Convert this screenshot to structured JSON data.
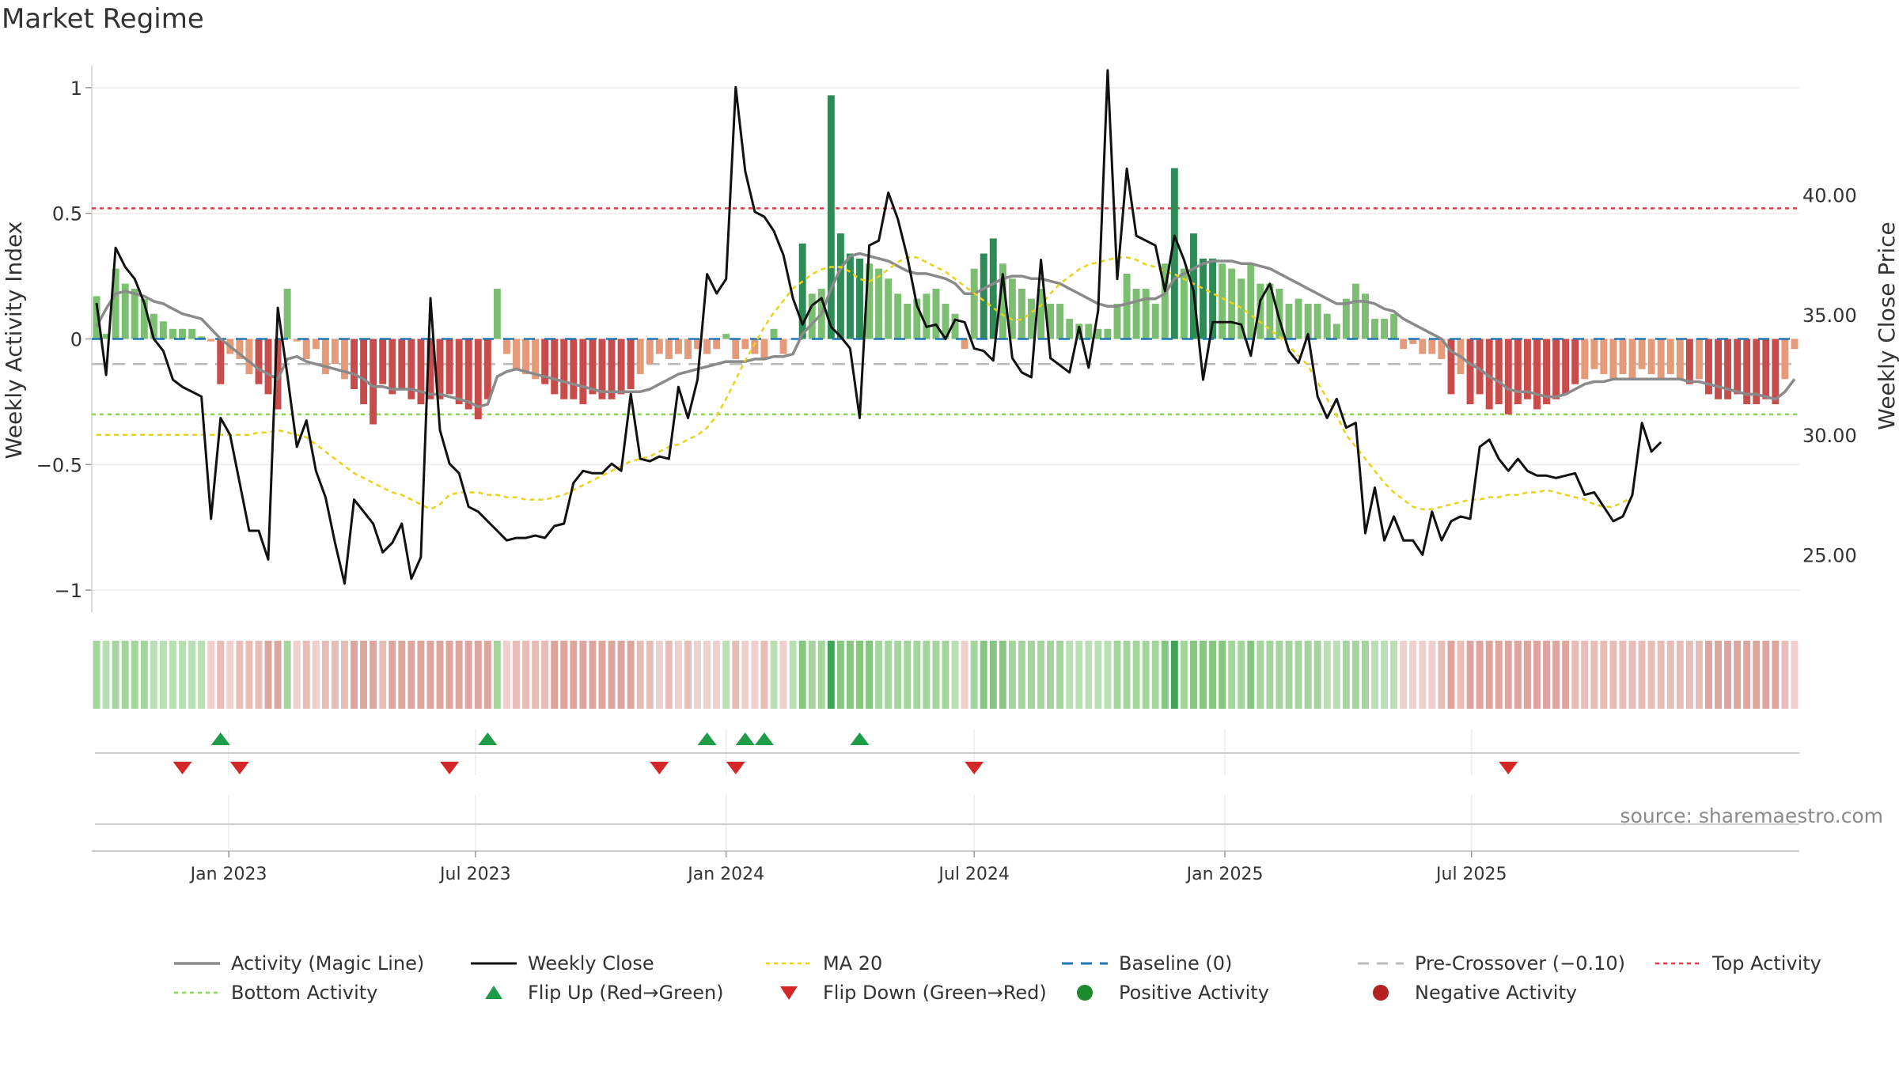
{
  "page": {
    "title": "Market Regime",
    "source": "source: sharemaestro.com"
  },
  "chart_data": {
    "type": "bar",
    "x_ticks": [
      "Jan 2023",
      "Jul 2023",
      "Jan 2024",
      "Jul 2024",
      "Jan 2025",
      "Jul 2025"
    ],
    "y_left": {
      "label": "Weekly Activity Index",
      "range": [
        -1.05,
        1.05
      ],
      "ticks": [
        1,
        0.5,
        0,
        -0.5,
        -1
      ],
      "tick_labels": [
        "1",
        "0.5",
        "0",
        "−0.5",
        "−1"
      ]
    },
    "y_right": {
      "label": "Weekly Close Price",
      "range": [
        23.0,
        45.0
      ],
      "ticks": [
        40,
        35,
        30,
        25
      ],
      "tick_labels": [
        "40.00",
        "35.00",
        "30.00",
        "25.00"
      ]
    },
    "reference_lines": {
      "top_activity": 0.52,
      "bottom_activity": -0.3,
      "baseline": 0,
      "pre_crossover": -0.1
    },
    "start_week": "2022-09-26",
    "activity": [
      0.17,
      0.02,
      0.28,
      0.22,
      0.2,
      0.16,
      0.1,
      0.07,
      0.04,
      0.04,
      0.04,
      0.01,
      -0.01,
      -0.18,
      -0.06,
      -0.08,
      -0.14,
      -0.18,
      -0.22,
      -0.28,
      0.2,
      -0.01,
      -0.08,
      -0.04,
      -0.14,
      -0.1,
      -0.16,
      -0.2,
      -0.26,
      -0.34,
      -0.18,
      -0.22,
      -0.2,
      -0.24,
      -0.26,
      -0.24,
      -0.24,
      -0.22,
      -0.26,
      -0.28,
      -0.32,
      -0.24,
      0.2,
      -0.06,
      -0.12,
      -0.14,
      -0.16,
      -0.18,
      -0.22,
      -0.24,
      -0.24,
      -0.26,
      -0.22,
      -0.24,
      -0.24,
      -0.22,
      -0.2,
      -0.14,
      -0.1,
      -0.06,
      -0.08,
      -0.06,
      -0.08,
      -0.04,
      -0.06,
      -0.04,
      0.02,
      -0.08,
      -0.04,
      -0.06,
      -0.08,
      0.04,
      -0.06,
      0.0,
      0.38,
      0.18,
      0.2,
      0.97,
      0.42,
      0.34,
      0.32,
      0.3,
      0.28,
      0.24,
      0.18,
      0.14,
      0.16,
      0.18,
      0.2,
      0.14,
      0.1,
      -0.04,
      0.28,
      0.34,
      0.4,
      0.3,
      0.24,
      0.2,
      0.16,
      0.2,
      0.14,
      0.14,
      0.08,
      0.06,
      0.06,
      0.04,
      0.04,
      0.14,
      0.26,
      0.2,
      0.2,
      0.14,
      0.3,
      0.68,
      0.28,
      0.42,
      0.32,
      0.32,
      0.3,
      0.28,
      0.24,
      0.3,
      0.22,
      0.22,
      0.2,
      0.14,
      0.16,
      0.14,
      0.14,
      0.1,
      0.06,
      0.16,
      0.22,
      0.18,
      0.08,
      0.08,
      0.1,
      -0.04,
      -0.02,
      -0.06,
      -0.06,
      -0.08,
      -0.22,
      -0.14,
      -0.26,
      -0.22,
      -0.28,
      -0.26,
      -0.3,
      -0.26,
      -0.24,
      -0.28,
      -0.26,
      -0.24,
      -0.22,
      -0.18,
      -0.16,
      -0.12,
      -0.14,
      -0.16,
      -0.14,
      -0.16,
      -0.12,
      -0.14,
      -0.16,
      -0.14,
      -0.16,
      -0.18,
      -0.16,
      -0.22,
      -0.24,
      -0.24,
      -0.22,
      -0.26,
      -0.26,
      -0.24,
      -0.26,
      -0.16,
      -0.04
    ],
    "magic_line": [
      0.05,
      0.12,
      0.18,
      0.19,
      0.18,
      0.17,
      0.15,
      0.14,
      0.12,
      0.1,
      0.09,
      0.08,
      0.04,
      0.0,
      -0.03,
      -0.06,
      -0.09,
      -0.12,
      -0.14,
      -0.16,
      -0.08,
      -0.07,
      -0.09,
      -0.1,
      -0.11,
      -0.12,
      -0.13,
      -0.14,
      -0.16,
      -0.19,
      -0.19,
      -0.2,
      -0.2,
      -0.2,
      -0.21,
      -0.22,
      -0.22,
      -0.23,
      -0.24,
      -0.25,
      -0.27,
      -0.26,
      -0.15,
      -0.13,
      -0.12,
      -0.13,
      -0.14,
      -0.15,
      -0.16,
      -0.17,
      -0.18,
      -0.19,
      -0.2,
      -0.21,
      -0.21,
      -0.21,
      -0.21,
      -0.21,
      -0.2,
      -0.18,
      -0.16,
      -0.14,
      -0.13,
      -0.12,
      -0.11,
      -0.1,
      -0.09,
      -0.09,
      -0.09,
      -0.08,
      -0.08,
      -0.07,
      -0.07,
      -0.06,
      0.02,
      0.06,
      0.1,
      0.2,
      0.28,
      0.33,
      0.34,
      0.33,
      0.32,
      0.31,
      0.29,
      0.27,
      0.26,
      0.26,
      0.25,
      0.24,
      0.22,
      0.18,
      0.18,
      0.2,
      0.22,
      0.24,
      0.25,
      0.25,
      0.24,
      0.24,
      0.23,
      0.22,
      0.2,
      0.18,
      0.16,
      0.14,
      0.13,
      0.13,
      0.14,
      0.15,
      0.16,
      0.16,
      0.18,
      0.24,
      0.26,
      0.28,
      0.3,
      0.31,
      0.31,
      0.31,
      0.3,
      0.3,
      0.29,
      0.28,
      0.26,
      0.24,
      0.22,
      0.2,
      0.18,
      0.16,
      0.14,
      0.14,
      0.15,
      0.15,
      0.14,
      0.12,
      0.11,
      0.08,
      0.06,
      0.04,
      0.02,
      0.0,
      -0.05,
      -0.07,
      -0.1,
      -0.12,
      -0.15,
      -0.17,
      -0.2,
      -0.21,
      -0.21,
      -0.22,
      -0.23,
      -0.23,
      -0.22,
      -0.2,
      -0.18,
      -0.17,
      -0.17,
      -0.16,
      -0.16,
      -0.16,
      -0.16,
      -0.16,
      -0.16,
      -0.16,
      -0.16,
      -0.17,
      -0.17,
      -0.18,
      -0.19,
      -0.2,
      -0.21,
      -0.22,
      -0.22,
      -0.23,
      -0.24,
      -0.21,
      -0.16
    ],
    "weekly_close": [
      35.5,
      32.5,
      37.8,
      37.0,
      36.5,
      35.5,
      34.0,
      33.5,
      32.3,
      32.0,
      31.8,
      31.6,
      26.5,
      30.7,
      30.0,
      28.0,
      26.0,
      26.0,
      24.8,
      35.3,
      32.5,
      29.5,
      30.6,
      28.5,
      27.4,
      25.5,
      23.8,
      27.3,
      26.8,
      26.3,
      25.1,
      25.5,
      26.3,
      24.0,
      24.9,
      35.7,
      30.2,
      28.8,
      28.4,
      27.0,
      26.8,
      26.4,
      26.0,
      25.6,
      25.7,
      25.7,
      25.8,
      25.7,
      26.2,
      26.3,
      28.0,
      28.5,
      28.4,
      28.4,
      28.8,
      28.5,
      31.7,
      29.0,
      28.9,
      29.1,
      29.0,
      32.0,
      30.7,
      32.3,
      36.7,
      35.9,
      36.5,
      44.5,
      41.0,
      39.3,
      39.1,
      38.5,
      37.5,
      35.7,
      34.6,
      35.4,
      35.7,
      34.5,
      34.1,
      33.6,
      30.7,
      37.9,
      38.1,
      40.1,
      39.0,
      37.4,
      35.4,
      34.5,
      34.6,
      34.0,
      34.8,
      34.7,
      33.6,
      33.5,
      33.1,
      36.7,
      33.2,
      32.6,
      32.4,
      37.3,
      33.2,
      32.9,
      32.6,
      34.5,
      32.8,
      35.2,
      45.2,
      36.5,
      41.1,
      38.3,
      38.1,
      37.9,
      36.0,
      38.3,
      37.3,
      36.0,
      32.3,
      34.7,
      34.7,
      34.7,
      34.6,
      33.3,
      35.6,
      36.3,
      34.8,
      33.5,
      33.0,
      34.2,
      31.6,
      30.7,
      31.5,
      30.3,
      30.5,
      25.9,
      27.8,
      25.6,
      26.6,
      25.6,
      25.6,
      25.0,
      26.8,
      25.6,
      26.4,
      26.6,
      26.5,
      29.5,
      29.8,
      29.0,
      28.5,
      29.0,
      28.5,
      28.3,
      28.3,
      28.2,
      28.3,
      28.4,
      27.5,
      27.6,
      27.0,
      26.4,
      26.6,
      27.5,
      30.5,
      29.3,
      29.7
    ],
    "ma20": [
      30.0,
      30.0,
      30.0,
      30.0,
      30.0,
      30.0,
      30.0,
      30.0,
      30.0,
      30.0,
      30.0,
      30.0,
      30.0,
      30.0,
      30.0,
      30.0,
      30.0,
      30.1,
      30.1,
      30.2,
      30.1,
      30.0,
      29.9,
      29.6,
      29.3,
      29.0,
      28.7,
      28.4,
      28.2,
      28.0,
      27.8,
      27.6,
      27.5,
      27.3,
      27.1,
      26.9,
      27.1,
      27.5,
      27.6,
      27.6,
      27.6,
      27.5,
      27.5,
      27.4,
      27.4,
      27.3,
      27.3,
      27.3,
      27.4,
      27.5,
      27.7,
      27.9,
      28.1,
      28.3,
      28.5,
      28.7,
      28.9,
      29.0,
      29.1,
      29.3,
      29.5,
      29.6,
      29.8,
      30.0,
      30.3,
      30.8,
      31.5,
      32.3,
      33.1,
      33.8,
      34.5,
      35.1,
      35.6,
      36.1,
      36.4,
      36.7,
      36.9,
      37.0,
      37.0,
      36.8,
      36.5,
      36.4,
      36.6,
      36.9,
      37.2,
      37.4,
      37.4,
      37.2,
      37.0,
      36.8,
      36.5,
      36.2,
      35.9,
      35.6,
      35.3,
      35.0,
      34.8,
      34.8,
      35.1,
      35.4,
      35.9,
      36.3,
      36.6,
      36.9,
      37.1,
      37.2,
      37.3,
      37.4,
      37.4,
      37.3,
      37.1,
      37.0,
      36.8,
      36.7,
      36.5,
      36.3,
      36.1,
      35.9,
      35.7,
      35.5,
      35.3,
      35.0,
      34.7,
      34.4,
      34.1,
      33.7,
      33.3,
      32.9,
      32.2,
      31.5,
      30.8,
      30.0,
      29.5,
      29.0,
      28.5,
      28.0,
      27.6,
      27.3,
      27.0,
      26.9,
      26.9,
      27.0,
      27.1,
      27.2,
      27.3,
      27.3,
      27.4,
      27.4,
      27.5,
      27.5,
      27.6,
      27.6,
      27.7,
      27.6,
      27.5,
      27.4,
      27.3,
      27.1,
      27.0,
      27.0,
      27.2,
      27.4
    ],
    "flip_up_weeks": [
      13,
      41,
      64,
      68,
      70,
      80
    ],
    "flip_down_weeks": [
      9,
      15,
      37,
      59,
      67,
      92,
      148
    ],
    "legend": [
      "Activity (Magic Line)",
      "Weekly Close",
      "MA 20",
      "Baseline (0)",
      "Pre-Crossover (−0.10)",
      "Top Activity",
      "Bottom Activity",
      "Flip Up (Red→Green)",
      "Flip Down (Green→Red)",
      "Positive Activity",
      "Negative Activity"
    ],
    "colors": {
      "positive_strong": "#2e8b57",
      "positive_light": "#7dbf72",
      "negative_strong": "#c94c4c",
      "negative_light": "#e59a7a",
      "close": "#111111",
      "magic": "#8a8a8a",
      "ma20": "#e8d21a",
      "baseline": "#1f77b4",
      "pre_crossover": "#bbbbbb",
      "top": "#d6404e",
      "bottom": "#8fd35f",
      "flip_up": "#1e9c48",
      "flip_down": "#d62728",
      "positive_dot": "#1e8a2e",
      "negative_dot": "#b22222"
    }
  }
}
